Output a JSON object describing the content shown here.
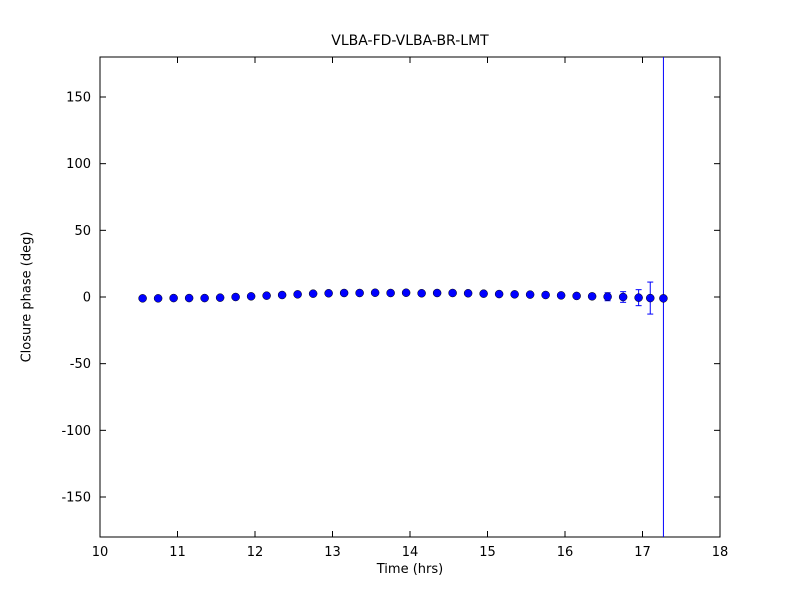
{
  "colors": {
    "marker": "#0000ff",
    "marker_edge": "#000000",
    "errorbar": "#0000ff",
    "axis": "#000000",
    "background": "#ffffff"
  },
  "chart_data": {
    "type": "scatter",
    "title": "VLBA-FD-VLBA-BR-LMT",
    "xlabel": "Time (hrs)",
    "ylabel": "Closure phase (deg)",
    "xlim": [
      10,
      18
    ],
    "ylim": [
      -180,
      180
    ],
    "x_ticks": [
      10,
      11,
      12,
      13,
      14,
      15,
      16,
      17,
      18
    ],
    "y_ticks": [
      -150,
      -100,
      -50,
      0,
      50,
      100,
      150
    ],
    "grid": false,
    "legend": false,
    "series": [
      {
        "name": "closure-phase",
        "x": [
          10.55,
          10.75,
          10.95,
          11.15,
          11.35,
          11.55,
          11.75,
          11.95,
          12.15,
          12.35,
          12.55,
          12.75,
          12.95,
          13.15,
          13.35,
          13.55,
          13.75,
          13.95,
          14.15,
          14.35,
          14.55,
          14.75,
          14.95,
          15.15,
          15.35,
          15.55,
          15.75,
          15.95,
          16.15,
          16.35,
          16.55,
          16.75,
          16.95,
          17.1,
          17.27
        ],
        "y": [
          -1,
          -1,
          -0.8,
          -0.8,
          -0.8,
          -0.5,
          0,
          0.5,
          1,
          1.5,
          2,
          2.5,
          2.8,
          3,
          3,
          3.2,
          3,
          3.2,
          2.8,
          3,
          3,
          2.8,
          2.5,
          2.2,
          2,
          1.8,
          1.5,
          1.2,
          0.8,
          0.5,
          0.2,
          0,
          -0.5,
          -0.8,
          -1
        ],
        "yerr": [
          0.5,
          0.5,
          0.5,
          0.5,
          0.5,
          0.5,
          0.5,
          0.5,
          0.5,
          0.5,
          0.5,
          0.5,
          0.5,
          0.5,
          0.5,
          0.5,
          0.5,
          0.5,
          0.5,
          0.5,
          0.5,
          0.5,
          0.5,
          0.5,
          0.5,
          0.5,
          0.5,
          0.8,
          1,
          2,
          3,
          4,
          6,
          12,
          400
        ]
      }
    ]
  }
}
